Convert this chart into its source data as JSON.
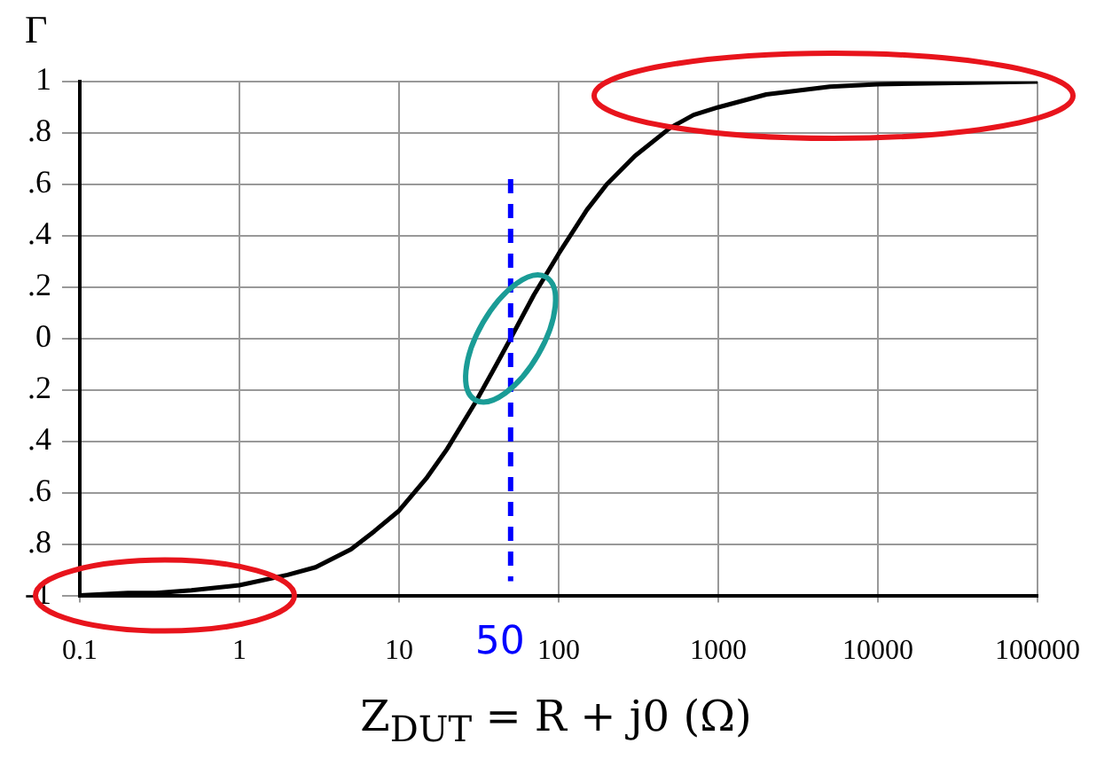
{
  "chart_data": {
    "type": "line",
    "ylabel": "Γ",
    "xlabel": "Z$_{DUT}$ = R + j0 (Ω)",
    "x": [
      0.1,
      0.2,
      0.3,
      0.5,
      1,
      2,
      3,
      5,
      7,
      10,
      15,
      20,
      30,
      40,
      50,
      70,
      100,
      150,
      200,
      300,
      500,
      700,
      1000,
      2000,
      5000,
      10000,
      100000
    ],
    "series": [
      {
        "color": "#000000",
        "values": [
          -1.0,
          -0.99,
          -0.99,
          -0.98,
          -0.96,
          -0.92,
          -0.89,
          -0.82,
          -0.75,
          -0.67,
          -0.54,
          -0.43,
          -0.25,
          -0.11,
          0.0,
          0.17,
          0.33,
          0.5,
          0.6,
          0.71,
          0.82,
          0.87,
          0.9,
          0.95,
          0.98,
          0.99,
          1.0
        ]
      }
    ],
    "log": "x",
    "xlim": [
      0.1,
      100000
    ],
    "xticks": [
      0.1,
      1,
      10,
      100,
      1000,
      10000,
      100000
    ],
    "ylim": [
      -1,
      1
    ],
    "yticks": [
      {
        "value": -1,
        "label": "-1"
      },
      {
        "value": -0.8,
        "label": ".8"
      },
      {
        "value": -0.6,
        "label": ".6"
      },
      {
        "value": -0.4,
        "label": ".4"
      },
      {
        "value": -0.2,
        "label": ".2"
      },
      0,
      {
        "value": 0.2,
        "label": ".2"
      },
      {
        "value": 0.4,
        "label": ".4"
      },
      {
        "value": 0.6,
        "label": ".6"
      },
      {
        "value": 0.8,
        "label": ".8"
      },
      1
    ],
    "grid": true,
    "legend": false,
    "marker": "none",
    "line_style": "solid",
    "ref_lines": [
      {
        "axis": "x",
        "value": 50,
        "label": "50",
        "color": "#0000ff",
        "line_style": "dashed"
      }
    ]
  }
}
